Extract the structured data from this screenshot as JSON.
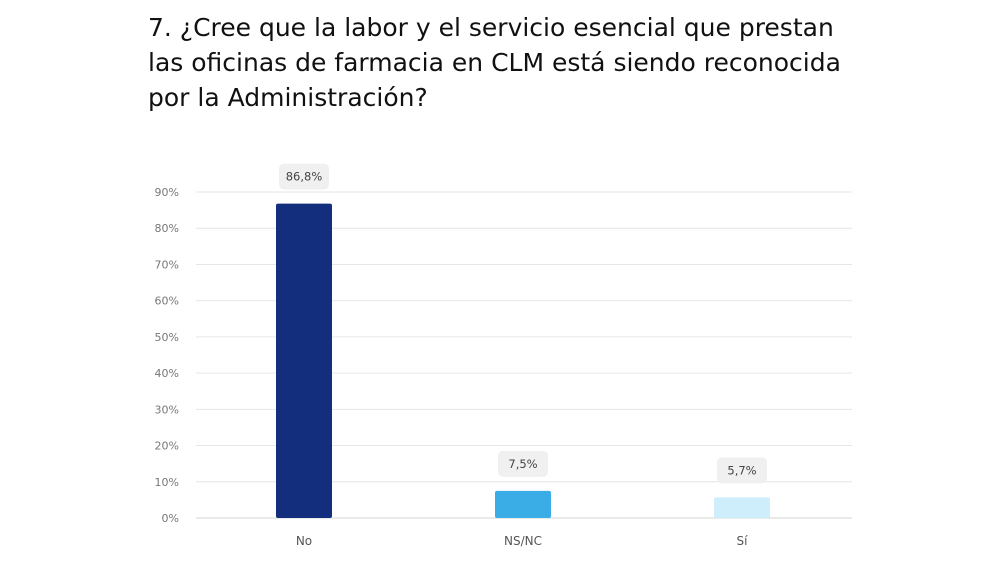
{
  "title": "7. ¿Cree que la labor y el servicio esencial que prestan las oficinas de farmacia en CLM está siendo reconocida por la Administración?",
  "chart_data": {
    "type": "bar",
    "title": "7. ¿Cree que la labor y el servicio esencial que prestan las oficinas de farmacia en CLM está siendo reconocida por la Administración?",
    "categories": [
      "No",
      "NS/NC",
      "Sí"
    ],
    "values": [
      86.8,
      7.5,
      5.7
    ],
    "value_labels": [
      "86,8%",
      "7,5%",
      "5,7%"
    ],
    "colors": [
      "#132e7d",
      "#3aace6",
      "#cdeefa"
    ],
    "yticks": [
      0,
      10,
      20,
      30,
      40,
      50,
      60,
      70,
      80,
      90
    ],
    "ytick_labels": [
      "0%",
      "10%",
      "20%",
      "30%",
      "40%",
      "50%",
      "60%",
      "70%",
      "80%",
      "90%"
    ],
    "ylim": [
      0,
      90
    ],
    "grid": true,
    "legend": "none",
    "xlabel": "",
    "ylabel": ""
  }
}
